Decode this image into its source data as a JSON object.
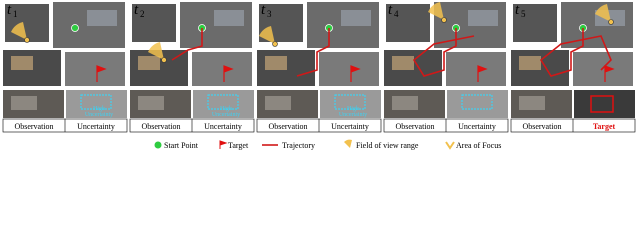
{
  "panels": [
    {
      "label": "t",
      "sub": "1",
      "captions": [
        "Observation",
        "Uncertainty"
      ],
      "overlay": [
        "High",
        "Uncertainty"
      ]
    },
    {
      "label": "t",
      "sub": "2",
      "captions": [
        "Observation",
        "Uncertainty"
      ],
      "overlay": [
        "High",
        "Uncertainty"
      ]
    },
    {
      "label": "t",
      "sub": "3",
      "captions": [
        "Observation",
        "Uncertainty"
      ],
      "overlay": [
        "High",
        "Uncertainty"
      ]
    },
    {
      "label": "t",
      "sub": "4",
      "captions": [
        "Observation",
        "Uncertainty"
      ]
    },
    {
      "label": "t",
      "sub": "5",
      "captions": [
        "Observation",
        "Target"
      ]
    }
  ],
  "legend": [
    "Start Point",
    "Target",
    "Trajectory",
    "Field of view range",
    "Area of Focus"
  ]
}
